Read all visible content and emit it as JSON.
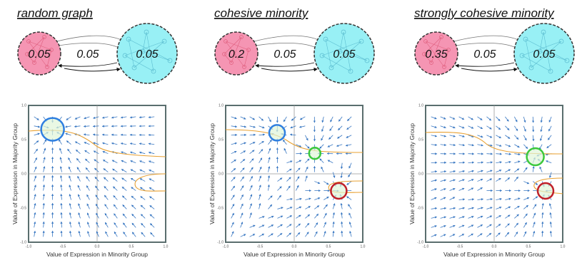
{
  "panels": [
    {
      "title": "random graph",
      "minority_density": 0.05,
      "between_density": 0.05,
      "majority_density": 0.05
    },
    {
      "title": "cohesive minority",
      "minority_density": 0.2,
      "between_density": 0.05,
      "majority_density": 0.05
    },
    {
      "title": "strongly cohesive minority",
      "minority_density": 0.35,
      "between_density": 0.05,
      "majority_density": 0.05
    }
  ],
  "axes": {
    "x_label": "Value of Expression in Minority Group",
    "y_label": "Value of Expression in Majority Group",
    "x_ticks": [
      "-1.0",
      "-0.5",
      "0.0",
      "0.5",
      "1.0"
    ],
    "y_ticks": [
      "1.0",
      "0.5",
      "0.0",
      "-0.5",
      "-1.0"
    ]
  }
}
